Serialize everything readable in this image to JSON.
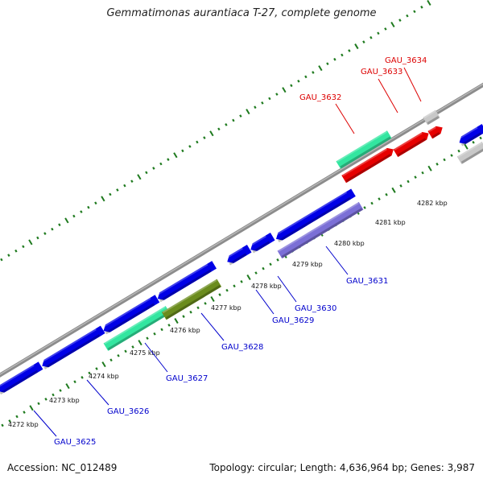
{
  "title": "Gemmatimonas aurantiaca T-27, complete genome",
  "footer": {
    "accession": "Accession: NC_012489",
    "summary": "Topology: circular; Length: 4,636,964 bp; Genes: 3,987"
  },
  "colors": {
    "backbone": "#8c8c8c",
    "tick": "#1e7a1e",
    "forward_gene": "#0000e6",
    "reverse_gene": "#e60000",
    "rna": "#33e6a0",
    "olive": "#6b8c1e",
    "lavender": "#7b6fd6",
    "pseudo": "#c8c8c8",
    "label_forward": "#0000cc",
    "label_reverse": "#dd0000"
  },
  "ticks": [
    "4272 kbp",
    "4273 kbp",
    "4274 kbp",
    "4275 kbp",
    "4276 kbp",
    "4277 kbp",
    "4278 kbp",
    "4279 kbp",
    "4280 kbp",
    "4281 kbp",
    "4282 kbp"
  ],
  "labels": {
    "bottom": [
      "GAU_3625",
      "GAU_3626",
      "GAU_3627",
      "GAU_3628",
      "GAU_3629",
      "GAU_3630",
      "GAU_3631"
    ],
    "top": [
      "GAU_3632",
      "GAU_3633",
      "GAU_3634"
    ]
  }
}
